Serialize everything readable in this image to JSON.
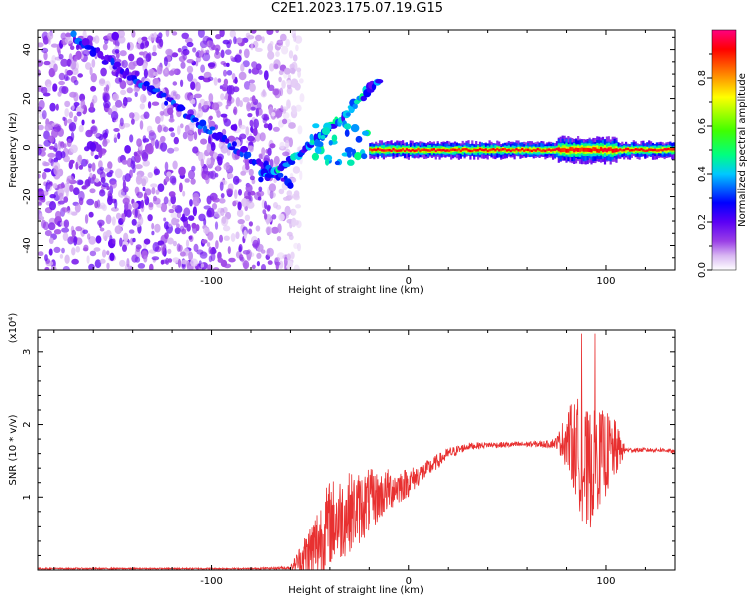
{
  "title": "C2E1.2023.175.07.19.G15",
  "chart_data": [
    {
      "type": "heatmap",
      "xlabel": "Height of straight line (km)",
      "ylabel": "Frequency (Hz)",
      "xlim": [
        -188,
        135
      ],
      "ylim": [
        -50,
        48
      ],
      "xticks": [
        -100,
        0,
        100
      ],
      "xtick_labels": [
        "-100",
        "0",
        "100"
      ],
      "yticks": [
        -40,
        -20,
        0,
        20,
        40
      ],
      "ytick_labels": [
        "-40",
        "-20",
        "0",
        "20",
        "40"
      ],
      "colorbar": {
        "label": "Normalized spectral amplitude",
        "range": [
          0,
          1
        ],
        "ticks": [
          0,
          0.2,
          0.4,
          0.6,
          0.8
        ],
        "tick_labels": [
          "0.0",
          "0.2",
          "0.4",
          "0.6",
          "0.8"
        ],
        "colors": [
          "#ffffff",
          "#d8b6f2",
          "#9a3fe6",
          "#5b00f5",
          "#0000ff",
          "#00c8ff",
          "#00ff80",
          "#40ff00",
          "#ffff00",
          "#ff8000",
          "#ff0000",
          "#ff0080"
        ]
      },
      "features": {
        "noise_region_x": [
          -188,
          -60
        ],
        "tracked_signal": {
          "x": [
            -20,
            135
          ],
          "frequency": -1,
          "peak_amplitude": 0.95
        },
        "descending_trace": {
          "x": [
            -170,
            -60
          ],
          "frequency": [
            45,
            -15
          ]
        },
        "ascending_trace": {
          "x": [
            -75,
            -15
          ],
          "frequency": [
            -12,
            28
          ]
        }
      }
    },
    {
      "type": "line",
      "xlabel": "Height of straight line (km)",
      "ylabel": "SNR (10 * v/v)",
      "y_multiplier": "(x10⁴)",
      "xlim": [
        -188,
        135
      ],
      "ylim": [
        0,
        3.3
      ],
      "xticks": [
        -100,
        0,
        100
      ],
      "xtick_labels": [
        "-100",
        "0",
        "100"
      ],
      "yticks": [
        1,
        2,
        3
      ],
      "ytick_labels": [
        "1",
        "2",
        "3"
      ],
      "series": [
        {
          "color": "#e83030",
          "x": [
            -188,
            -80,
            -60,
            -48,
            -40,
            -35,
            -30,
            -25,
            -20,
            -15,
            -10,
            -5,
            0,
            5,
            10,
            15,
            20,
            30,
            40,
            50,
            60,
            70,
            75,
            80,
            85,
            90,
            95,
            100,
            105,
            110,
            115,
            120,
            130,
            135
          ],
          "y": [
            0.02,
            0.02,
            0.03,
            0.3,
            0.65,
            0.7,
            0.8,
            0.85,
            0.95,
            1.0,
            1.1,
            1.15,
            1.2,
            1.3,
            1.4,
            1.5,
            1.6,
            1.7,
            1.72,
            1.72,
            1.73,
            1.73,
            1.75,
            1.8,
            1.7,
            1.3,
            1.5,
            1.6,
            1.65,
            1.65,
            1.65,
            1.65,
            1.65,
            1.62
          ],
          "noise_amplitude": [
            0.01,
            0.01,
            0.02,
            0.5,
            0.6,
            0.6,
            0.55,
            0.5,
            0.45,
            0.35,
            0.3,
            0.25,
            0.2,
            0.15,
            0.12,
            0.1,
            0.08,
            0.05,
            0.04,
            0.04,
            0.04,
            0.05,
            0.08,
            0.4,
            0.7,
            0.9,
            0.7,
            0.6,
            0.4,
            0.03,
            0.03,
            0.03,
            0.03,
            0.03
          ]
        }
      ]
    }
  ]
}
